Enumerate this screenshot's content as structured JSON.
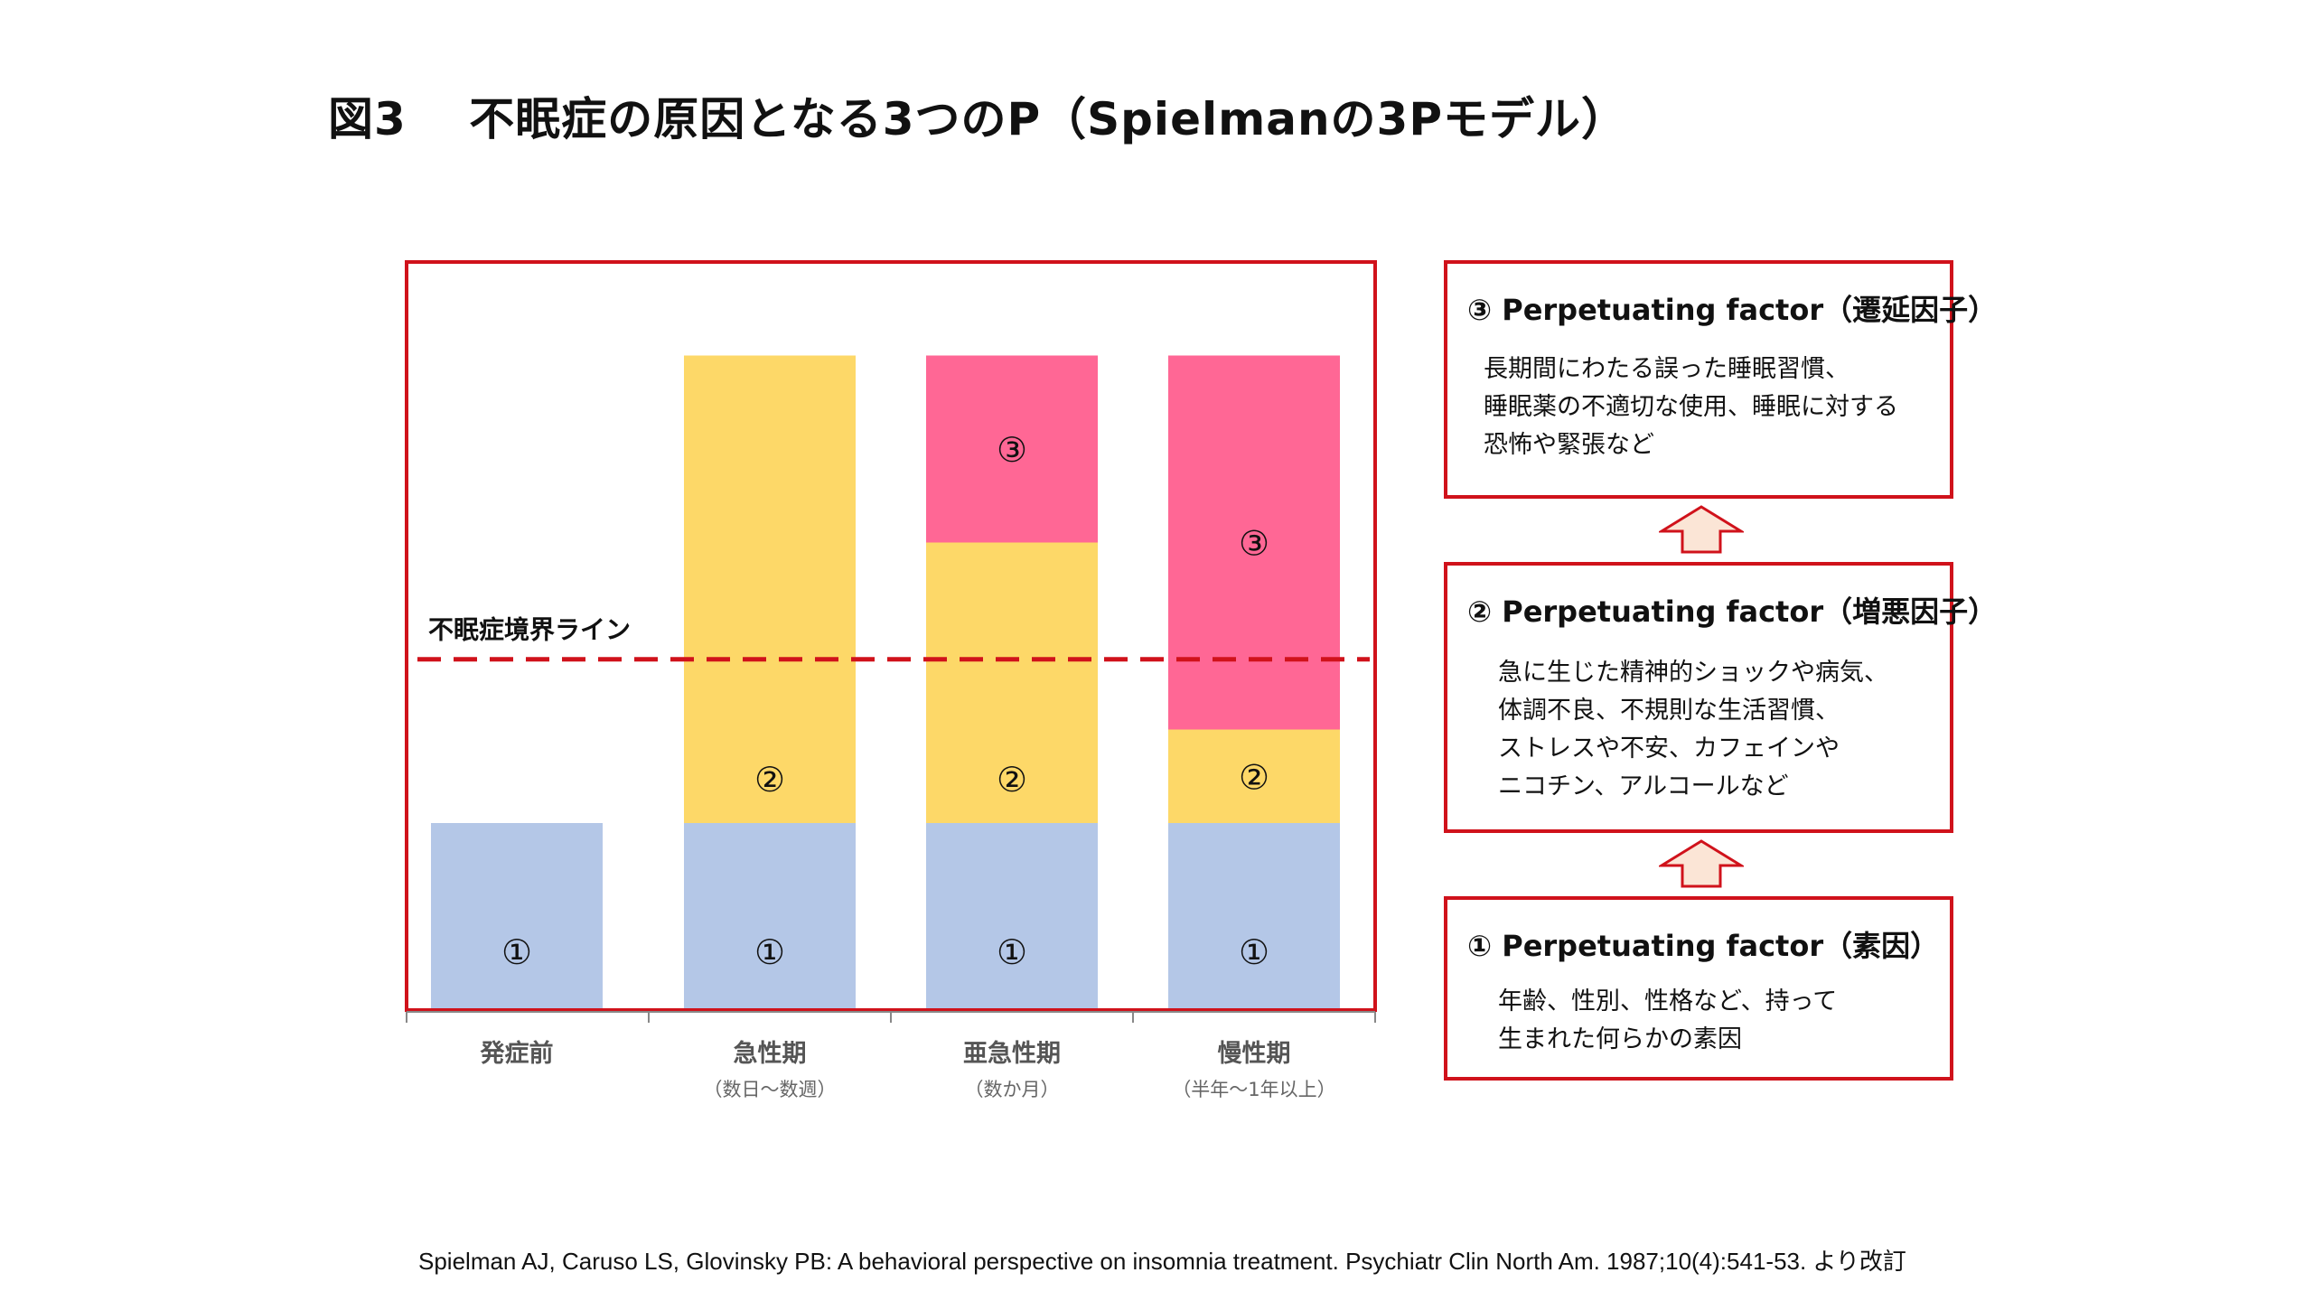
{
  "title": "図3　 不眠症の原因となる3つのP（Spielmanの3Pモデル）",
  "chart_data": {
    "type": "bar",
    "stacked": true,
    "categories": [
      "発症前",
      "急性期",
      "亜急性期",
      "慢性期"
    ],
    "sublabels": [
      "",
      "（数日〜数週）",
      "（数か月）",
      "（半年〜1年以上）"
    ],
    "series": [
      {
        "marker": "①",
        "color": "#b4c7e7",
        "values": [
          1,
          1,
          1,
          1
        ]
      },
      {
        "marker": "②",
        "color": "#fdd868",
        "values": [
          0,
          2.5,
          1.5,
          0.5
        ]
      },
      {
        "marker": "③",
        "color": "#ff6795",
        "values": [
          0,
          0,
          1,
          2
        ]
      }
    ],
    "threshold": {
      "label": "不眠症境界ライン",
      "value": 1.9,
      "color": "#d0121b"
    },
    "ylim": [
      0,
      4
    ],
    "frame_color": "#d0121b"
  },
  "boxes": {
    "p3": {
      "head": "③ Perpetuating factor（遷延因子）",
      "lines": [
        "長期間にわたる誤った睡眠習慣、",
        "睡眠薬の不適切な使用、睡眠に対する",
        "恐怖や緊張など"
      ]
    },
    "p2": {
      "head": "② Perpetuating factor（増悪因子）",
      "lines": [
        "急に生じた精神的ショックや病気、",
        "体調不良、不規則な生活習慣、",
        "ストレスや不安、カフェインや",
        "ニコチン、アルコールなど"
      ]
    },
    "p1": {
      "head": "① Perpetuating factor（素因）",
      "lines": [
        "年齢、性別、性格など、持って",
        "生まれた何らかの素因"
      ]
    }
  },
  "arrow_colors": {
    "fill": "#fbe5d6",
    "stroke": "#d0121b"
  },
  "citation": "Spielman AJ, Caruso LS, Glovinsky PB: A behavioral perspective on insomnia treatment. Psychiatr Clin North Am. 1987;10(4):541-53. より改訂"
}
